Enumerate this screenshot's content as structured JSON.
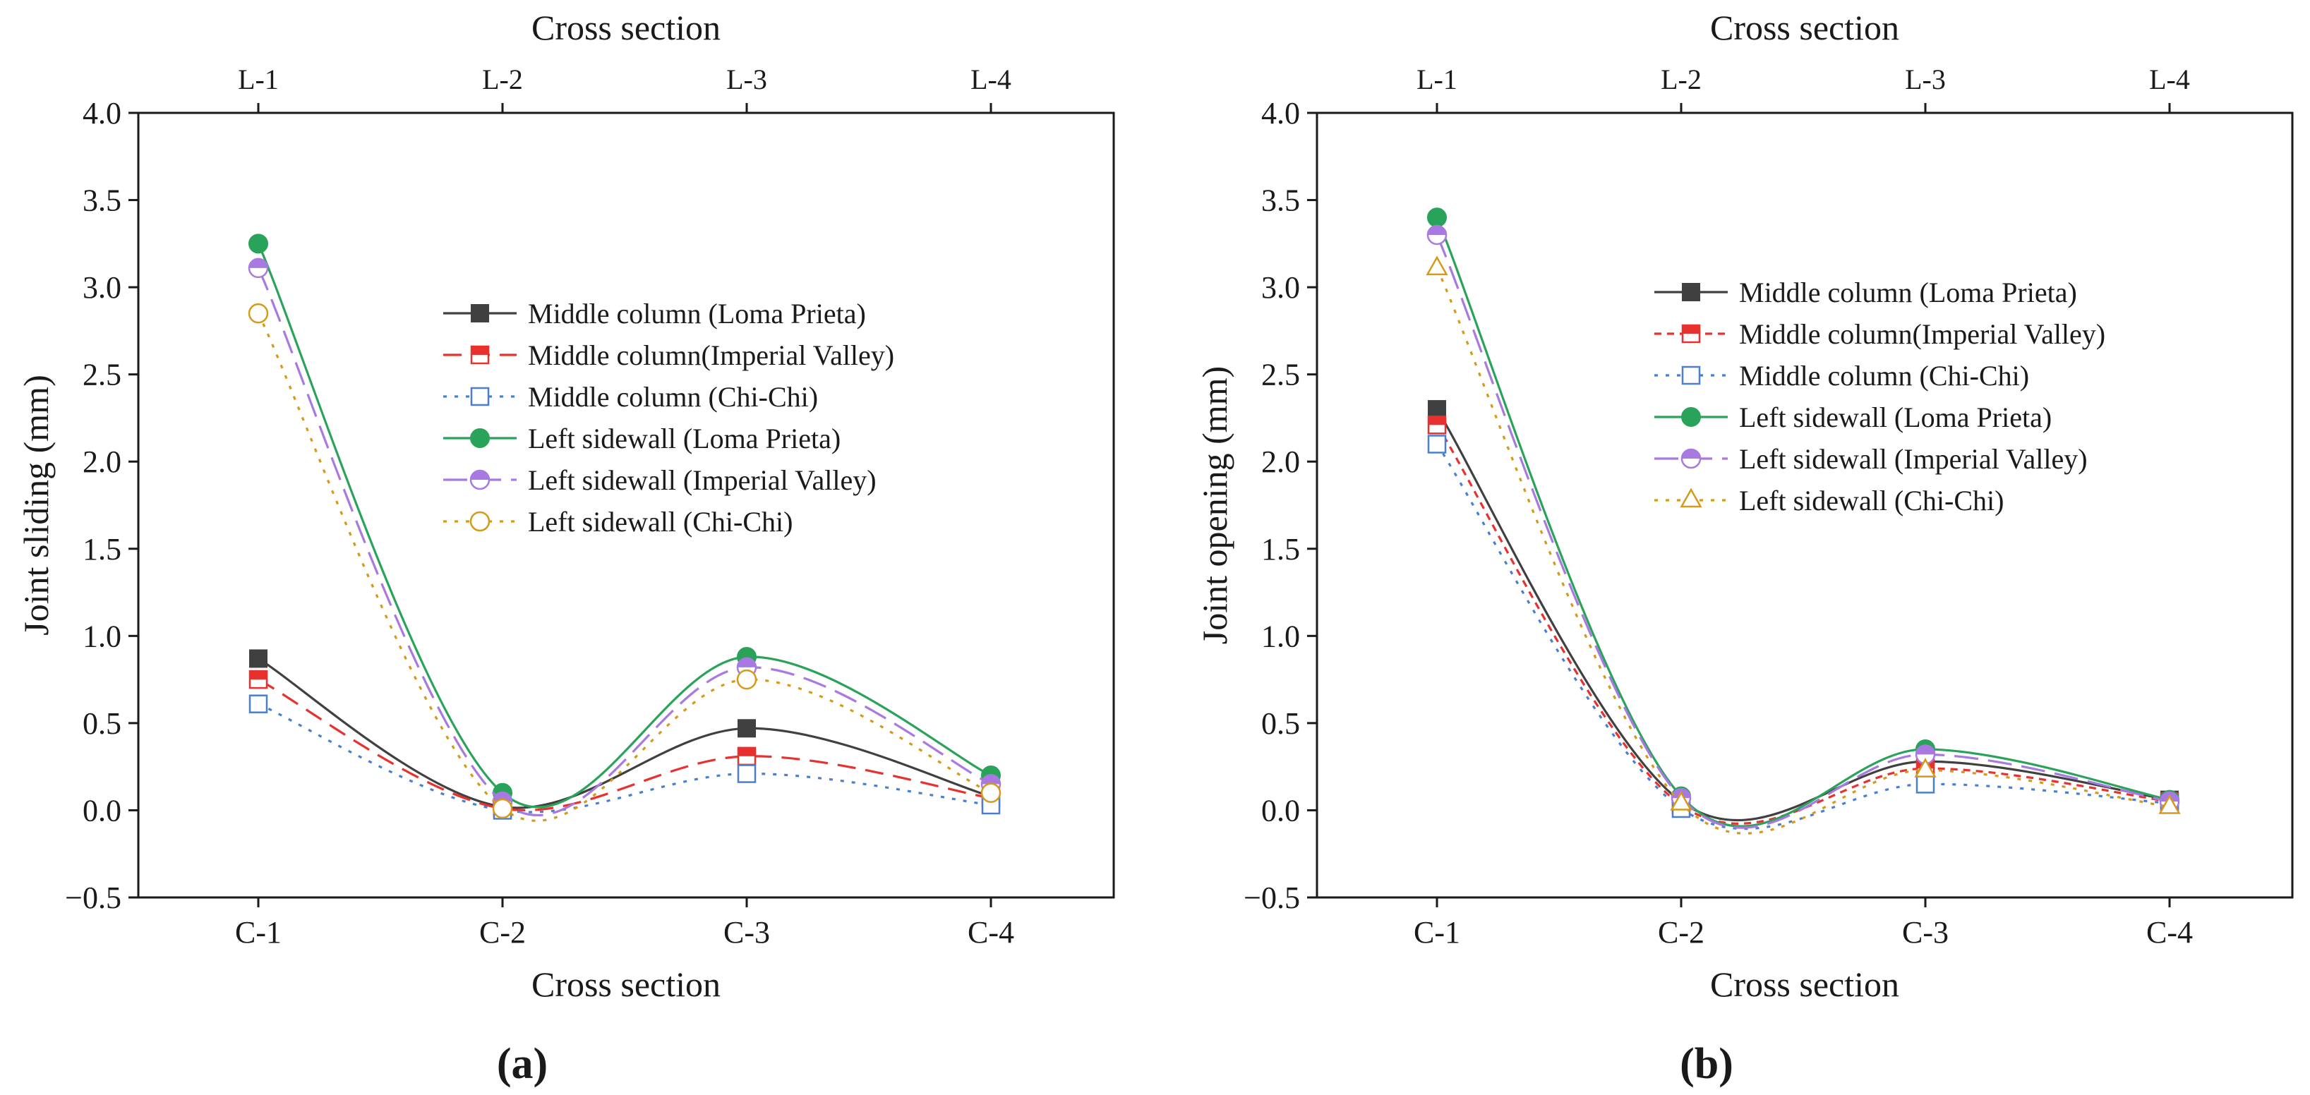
{
  "panels": [
    {
      "label": "(a)",
      "chart_data": {
        "type": "line",
        "x_categories": [
          "C-1",
          "C-2",
          "C-3",
          "C-4"
        ],
        "top_categories": [
          "L-1",
          "L-2",
          "L-3",
          "L-4"
        ],
        "xlabel": "Cross section",
        "top_xlabel": "Cross section",
        "ylabel": "Joint sliding (mm)",
        "ylim": [
          -0.5,
          4.0
        ],
        "yticks": [
          "−0.5",
          "0.0",
          "0.5",
          "1.0",
          "1.5",
          "2.0",
          "2.5",
          "3.0",
          "3.5",
          "4.0"
        ],
        "grid": false,
        "legend_position": "center-right",
        "series": [
          {
            "name": "Middle column (Loma Prieta)",
            "values": [
              0.87,
              0.02,
              0.47,
              0.08
            ],
            "color": "#404040",
            "dash": "solid",
            "marker": "square-filled"
          },
          {
            "name": "Middle column(Imperial Valley)",
            "values": [
              0.75,
              0.01,
              0.31,
              0.07
            ],
            "color": "#e8312f",
            "dash": "dashed",
            "marker": "square-half"
          },
          {
            "name": "Middle column (Chi-Chi)",
            "values": [
              0.61,
              0.0,
              0.21,
              0.03
            ],
            "color": "#4a7fd0",
            "dash": "dotted",
            "marker": "square-open"
          },
          {
            "name": "Left sidewall (Loma Prieta)",
            "values": [
              3.25,
              0.1,
              0.88,
              0.2
            ],
            "color": "#2aa35a",
            "dash": "solid",
            "marker": "circle-filled"
          },
          {
            "name": "Left sidewall (Imperial Valley)",
            "values": [
              3.11,
              0.05,
              0.82,
              0.15
            ],
            "color": "#a879e0",
            "dash": "longdash",
            "marker": "circle-half"
          },
          {
            "name": "Left sidewall (Chi-Chi)",
            "values": [
              2.85,
              0.01,
              0.75,
              0.1
            ],
            "color": "#d59a1a",
            "dash": "dotted",
            "marker": "circle-open"
          }
        ]
      }
    },
    {
      "label": "(b)",
      "chart_data": {
        "type": "line",
        "x_categories": [
          "C-1",
          "C-2",
          "C-3",
          "C-4"
        ],
        "top_categories": [
          "L-1",
          "L-2",
          "L-3",
          "L-4"
        ],
        "xlabel": "Cross section",
        "top_xlabel": "Cross section",
        "ylabel": "Joint opening (mm)",
        "ylim": [
          -0.5,
          4.0
        ],
        "yticks": [
          "−0.5",
          "0.0",
          "0.5",
          "1.0",
          "1.5",
          "2.0",
          "2.5",
          "3.0",
          "3.5",
          "4.0"
        ],
        "grid": false,
        "legend_position": "center-right",
        "series": [
          {
            "name": "Middle column (Loma Prieta)",
            "values": [
              2.3,
              0.05,
              0.28,
              0.06
            ],
            "color": "#404040",
            "dash": "solid",
            "marker": "square-filled"
          },
          {
            "name": "Middle column(Imperial Valley)",
            "values": [
              2.21,
              0.03,
              0.24,
              0.05
            ],
            "color": "#e8312f",
            "dash": "finedash",
            "marker": "square-half"
          },
          {
            "name": "Middle column (Chi-Chi)",
            "values": [
              2.1,
              0.01,
              0.15,
              0.04
            ],
            "color": "#4a7fd0",
            "dash": "dotted",
            "marker": "square-open"
          },
          {
            "name": "Left sidewall (Loma Prieta)",
            "values": [
              3.4,
              0.08,
              0.35,
              0.06
            ],
            "color": "#2aa35a",
            "dash": "solid",
            "marker": "circle-filled"
          },
          {
            "name": "Left sidewall (Imperial Valley)",
            "values": [
              3.3,
              0.07,
              0.32,
              0.05
            ],
            "color": "#a879e0",
            "dash": "longdash",
            "marker": "circle-half"
          },
          {
            "name": "Left sidewall (Chi-Chi)",
            "values": [
              3.11,
              0.04,
              0.23,
              0.02
            ],
            "color": "#d59a1a",
            "dash": "dotted",
            "marker": "triangle-open"
          }
        ]
      }
    }
  ]
}
